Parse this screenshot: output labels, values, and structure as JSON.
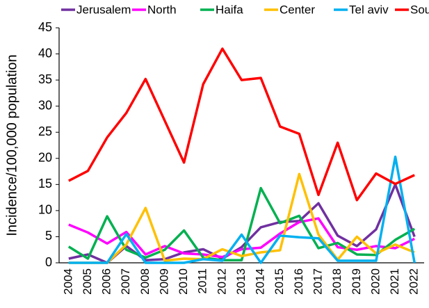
{
  "chart_data": {
    "type": "line",
    "y_label": "Incidence/100,000 population",
    "categories": [
      "2004",
      "2005",
      "2006",
      "2007",
      "2008",
      "2009",
      "2010",
      "2011",
      "2012",
      "2013",
      "2014",
      "2015",
      "2016",
      "2017",
      "2018",
      "2019",
      "2020",
      "2021",
      "2022"
    ],
    "series": [
      {
        "name": "Jerusalem",
        "color": "#7030a0",
        "values": [
          0.8,
          1.6,
          0,
          3.2,
          0.5,
          0.7,
          2,
          2.6,
          0.8,
          3,
          6.8,
          7.8,
          8,
          11.4,
          5.2,
          3.2,
          6.4,
          15,
          5
        ]
      },
      {
        "name": "North",
        "color": "#ff00ff",
        "values": [
          7.3,
          5.8,
          3.7,
          5.9,
          1.6,
          3.2,
          1.8,
          1.6,
          1.1,
          2.6,
          2.9,
          5.6,
          7.8,
          8.5,
          3,
          2.5,
          3.2,
          2.8,
          4.6
        ]
      },
      {
        "name": "Haifa",
        "color": "#00b050",
        "values": [
          3.1,
          0.8,
          8.9,
          2.5,
          1,
          2.5,
          6.2,
          1,
          0.5,
          0.5,
          14.3,
          7.6,
          9,
          2.8,
          3.8,
          1.6,
          1.5,
          4.4,
          6.5
        ]
      },
      {
        "name": "Center",
        "color": "#ffc000",
        "values": [
          0,
          0,
          0,
          3.5,
          10.5,
          0.4,
          0.8,
          0.7,
          2.6,
          1.3,
          2,
          2.4,
          17,
          5.4,
          0.6,
          5,
          1.8,
          3.5,
          2
        ]
      },
      {
        "name": "Tel aviv",
        "color": "#00b0f0",
        "values": [
          0,
          0,
          0,
          5.5,
          0,
          0,
          0,
          0.7,
          0.4,
          5.4,
          0,
          5.2,
          4.9,
          4.7,
          0.4,
          0.4,
          0.4,
          20.3,
          0
        ]
      },
      {
        "name": "South",
        "color": "#ff0000",
        "values": [
          15.7,
          17.6,
          24,
          28.7,
          35.2,
          27.2,
          19.2,
          34.2,
          41,
          35,
          35.4,
          26.1,
          24.7,
          13,
          23,
          12,
          17.1,
          15.1,
          16.8
        ]
      }
    ],
    "ylim": [
      0,
      45
    ],
    "yticks": [
      0,
      5,
      10,
      15,
      20,
      25,
      30,
      35,
      40,
      45
    ],
    "legend": "top"
  }
}
